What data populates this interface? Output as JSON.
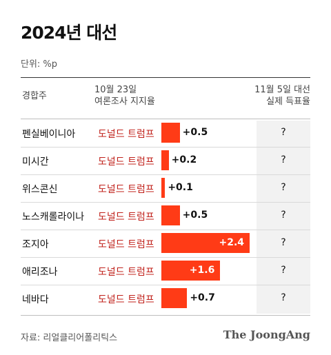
{
  "header": {
    "title": "2024년 대선",
    "unit": "단위: %p"
  },
  "columns": {
    "state": "경합주",
    "poll_line1": "10월 23일",
    "poll_line2": "여론조사 지지율",
    "result_line1": "11월 5일 대선",
    "result_line2": "실제 득표율"
  },
  "colors": {
    "bar": "#ff3b16",
    "leader_text": "#c0201a",
    "result_bg": "#f2f2f2"
  },
  "chart_data": {
    "type": "bar",
    "orientation": "horizontal",
    "title": "2024년 대선",
    "unit": "단위: %p",
    "categories": [
      "펜실베이니아",
      "미시간",
      "위스콘신",
      "노스캐롤라이나",
      "조지아",
      "애리조나",
      "네바다"
    ],
    "leaders": [
      "도널드 트럼프",
      "도널드 트럼프",
      "도널드 트럼프",
      "도널드 트럼프",
      "도널드 트럼프",
      "도널드 트럼프",
      "도널드 트럼프"
    ],
    "values": [
      0.5,
      0.2,
      0.1,
      0.5,
      2.4,
      1.6,
      0.7
    ],
    "value_labels": [
      "+0.5",
      "+0.2",
      "+0.1",
      "+0.5",
      "+2.4",
      "+1.6",
      "+0.7"
    ],
    "results": [
      "?",
      "?",
      "?",
      "?",
      "?",
      "?",
      "?"
    ],
    "xlim": [
      0,
      2.4
    ],
    "grid": false,
    "legend": "none"
  },
  "footer": {
    "source": "자료: 리얼클리어폴리틱스",
    "brand": "The JoongAng"
  }
}
